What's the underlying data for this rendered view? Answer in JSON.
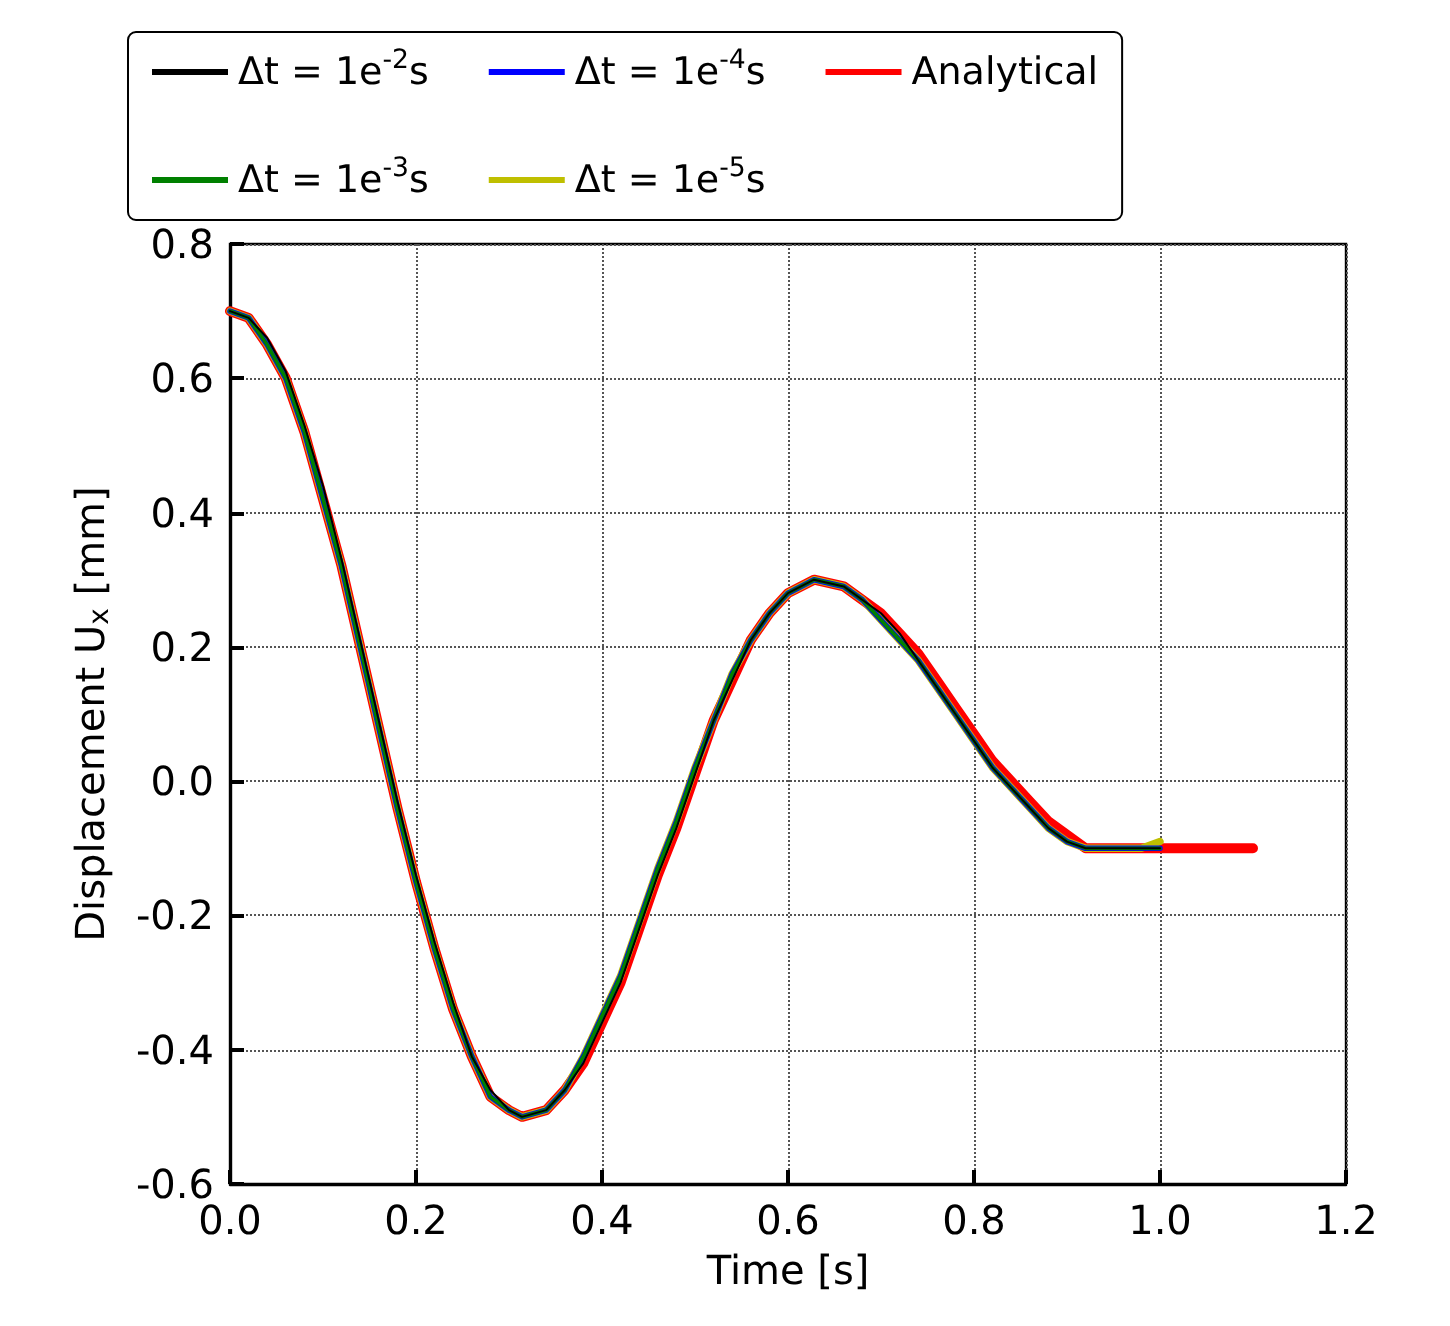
{
  "chart_data": {
    "type": "line",
    "xlabel": "Time [s]",
    "ylabel": "Displacement U$_{x}$ [mm]",
    "xlim": [
      0,
      1.2
    ],
    "xticks": [
      {
        "value": 0,
        "label": "0.0"
      },
      0.2,
      0.4,
      0.6,
      0.8,
      {
        "value": 1,
        "label": "1.0"
      },
      1.2
    ],
    "ylim": [
      -0.6,
      0.8
    ],
    "yticks": [
      -0.6,
      -0.4,
      -0.2,
      {
        "value": 0,
        "label": "0.0"
      },
      0.2,
      0.4,
      0.6,
      0.8
    ],
    "grid": true,
    "legend": "top",
    "line_style": "solid",
    "marker": "none",
    "series": [
      {
        "name": "Δt = 1e$^{-2}$s",
        "color": "#000000",
        "x": [
          0,
          0.02,
          0.04,
          0.06,
          0.08,
          0.1,
          0.12,
          0.14,
          0.16,
          0.18,
          0.2,
          0.22,
          0.24,
          0.26,
          0.28,
          0.3,
          0.314,
          0.34,
          0.36,
          0.38,
          0.4,
          0.42,
          0.44,
          0.46,
          0.48,
          0.5,
          0.52,
          0.54,
          0.56,
          0.58,
          0.6,
          0.628,
          0.66,
          0.68,
          0.7,
          0.72,
          0.74,
          0.76,
          0.78,
          0.8,
          0.82,
          0.84,
          0.86,
          0.88,
          0.9,
          0.92,
          0.94,
          0.96,
          0.98,
          1.0
        ],
        "values": [
          0.7,
          0.69,
          0.66,
          0.61,
          0.53,
          0.44,
          0.33,
          0.21,
          0.09,
          -0.03,
          -0.14,
          -0.24,
          -0.33,
          -0.41,
          -0.46,
          -0.49,
          -0.5,
          -0.49,
          -0.46,
          -0.42,
          -0.36,
          -0.3,
          -0.22,
          -0.14,
          -0.07,
          0.01,
          0.09,
          0.15,
          0.21,
          0.25,
          0.28,
          0.3,
          0.29,
          0.27,
          0.25,
          0.22,
          0.18,
          0.14,
          0.1,
          0.06,
          0.02,
          -0.01,
          -0.04,
          -0.07,
          -0.09,
          -0.1,
          -0.1,
          -0.1,
          -0.1,
          -0.1
        ]
      },
      {
        "name": "Δt = 1e$^{-3}$s",
        "color": "#008000",
        "x": [
          0,
          0.02,
          0.04,
          0.06,
          0.08,
          0.1,
          0.12,
          0.14,
          0.16,
          0.18,
          0.2,
          0.22,
          0.24,
          0.26,
          0.28,
          0.3,
          0.314,
          0.34,
          0.36,
          0.38,
          0.4,
          0.42,
          0.44,
          0.46,
          0.48,
          0.5,
          0.52,
          0.54,
          0.56,
          0.58,
          0.6,
          0.628,
          0.66,
          0.68,
          0.7,
          0.72,
          0.74,
          0.76,
          0.78,
          0.8,
          0.82,
          0.84,
          0.86,
          0.88,
          0.9,
          0.92,
          0.94,
          0.96,
          0.98,
          1.0
        ],
        "values": [
          0.7,
          0.69,
          0.65,
          0.6,
          0.52,
          0.42,
          0.32,
          0.2,
          0.08,
          -0.04,
          -0.15,
          -0.25,
          -0.34,
          -0.41,
          -0.47,
          -0.49,
          -0.5,
          -0.49,
          -0.46,
          -0.41,
          -0.35,
          -0.29,
          -0.21,
          -0.13,
          -0.06,
          0.02,
          0.09,
          0.16,
          0.21,
          0.25,
          0.28,
          0.3,
          0.29,
          0.27,
          0.24,
          0.21,
          0.18,
          0.14,
          0.1,
          0.06,
          0.02,
          -0.01,
          -0.04,
          -0.07,
          -0.09,
          -0.1,
          -0.1,
          -0.1,
          -0.1,
          -0.1
        ]
      },
      {
        "name": "Δt = 1e$^{-4}$s",
        "color": "#0000ff",
        "x": [
          0,
          0.02,
          0.04,
          0.06,
          0.08,
          0.1,
          0.12,
          0.14,
          0.16,
          0.18,
          0.2,
          0.22,
          0.24,
          0.26,
          0.28,
          0.3,
          0.314,
          0.34,
          0.36,
          0.38,
          0.4,
          0.42,
          0.44,
          0.46,
          0.48,
          0.5,
          0.52,
          0.54,
          0.56,
          0.58,
          0.6,
          0.628,
          0.66,
          0.68,
          0.7,
          0.72,
          0.74,
          0.76,
          0.78,
          0.8,
          0.82,
          0.84,
          0.86,
          0.88,
          0.9,
          0.92,
          0.94,
          0.96,
          0.98,
          1.0
        ],
        "values": [
          0.7,
          0.69,
          0.65,
          0.6,
          0.52,
          0.42,
          0.32,
          0.2,
          0.08,
          -0.04,
          -0.15,
          -0.25,
          -0.34,
          -0.41,
          -0.47,
          -0.49,
          -0.5,
          -0.49,
          -0.46,
          -0.41,
          -0.35,
          -0.29,
          -0.21,
          -0.13,
          -0.06,
          0.02,
          0.09,
          0.16,
          0.21,
          0.25,
          0.28,
          0.3,
          0.29,
          0.27,
          0.24,
          0.21,
          0.18,
          0.14,
          0.1,
          0.06,
          0.02,
          -0.01,
          -0.04,
          -0.07,
          -0.09,
          -0.1,
          -0.1,
          -0.1,
          -0.1,
          -0.1
        ]
      },
      {
        "name": "Δt = 1e$^{-5}$s",
        "color": "#bfbf00",
        "x": [
          0,
          0.02,
          0.04,
          0.06,
          0.08,
          0.1,
          0.12,
          0.14,
          0.16,
          0.18,
          0.2,
          0.22,
          0.24,
          0.26,
          0.28,
          0.3,
          0.314,
          0.34,
          0.36,
          0.38,
          0.4,
          0.42,
          0.44,
          0.46,
          0.48,
          0.5,
          0.52,
          0.54,
          0.56,
          0.58,
          0.6,
          0.628,
          0.66,
          0.68,
          0.7,
          0.72,
          0.74,
          0.76,
          0.78,
          0.8,
          0.82,
          0.84,
          0.86,
          0.88,
          0.9,
          0.92,
          0.94,
          0.96,
          0.98,
          1.0
        ],
        "values": [
          0.7,
          0.69,
          0.65,
          0.6,
          0.52,
          0.42,
          0.32,
          0.2,
          0.08,
          -0.04,
          -0.15,
          -0.25,
          -0.34,
          -0.41,
          -0.47,
          -0.49,
          -0.5,
          -0.49,
          -0.46,
          -0.41,
          -0.35,
          -0.29,
          -0.21,
          -0.13,
          -0.06,
          0.02,
          0.09,
          0.16,
          0.21,
          0.25,
          0.28,
          0.3,
          0.29,
          0.27,
          0.24,
          0.21,
          0.18,
          0.14,
          0.1,
          0.06,
          0.02,
          -0.01,
          -0.04,
          -0.07,
          -0.09,
          -0.1,
          -0.1,
          -0.1,
          -0.1,
          -0.09
        ]
      },
      {
        "name": "Analytical",
        "color": "#ff0000",
        "x": [
          0,
          0.02,
          0.04,
          0.06,
          0.08,
          0.1,
          0.12,
          0.14,
          0.16,
          0.18,
          0.2,
          0.22,
          0.24,
          0.26,
          0.28,
          0.3,
          0.314,
          0.34,
          0.36,
          0.38,
          0.4,
          0.42,
          0.44,
          0.46,
          0.48,
          0.5,
          0.52,
          0.54,
          0.56,
          0.58,
          0.6,
          0.628,
          0.66,
          0.68,
          0.7,
          0.72,
          0.74,
          0.76,
          0.78,
          0.8,
          0.82,
          0.84,
          0.86,
          0.88,
          0.9,
          0.92,
          0.942,
          1.0,
          1.1
        ],
        "values": [
          0.7,
          0.69,
          0.65,
          0.6,
          0.52,
          0.42,
          0.32,
          0.2,
          0.08,
          -0.04,
          -0.15,
          -0.25,
          -0.34,
          -0.41,
          -0.47,
          -0.49,
          -0.5,
          -0.49,
          -0.46,
          -0.42,
          -0.36,
          -0.3,
          -0.22,
          -0.14,
          -0.07,
          0.01,
          0.09,
          0.15,
          0.21,
          0.25,
          0.28,
          0.3,
          0.29,
          0.27,
          0.25,
          0.22,
          0.19,
          0.15,
          0.11,
          0.07,
          0.03,
          0.0,
          -0.03,
          -0.06,
          -0.08,
          -0.1,
          -0.1,
          -0.1,
          -0.1
        ]
      }
    ]
  }
}
